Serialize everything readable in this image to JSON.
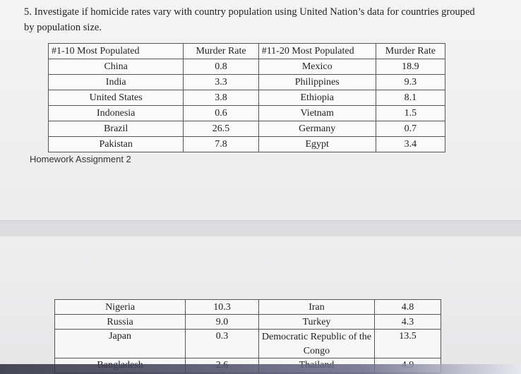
{
  "question": "5. Investigate if homicide rates vary with country population using United Nation’s data for countries grouped by population size.",
  "section_label": "Homework Assignment 2",
  "table1": {
    "headers": [
      "#1-10 Most Populated",
      "Murder Rate",
      "#11-20 Most Populated",
      "Murder Rate"
    ],
    "rows": [
      [
        "China",
        "0.8",
        "Mexico",
        "18.9"
      ],
      [
        "India",
        "3.3",
        "Philippines",
        "9.3"
      ],
      [
        "United States",
        "3.8",
        "Ethiopia",
        "8.1"
      ],
      [
        "Indonesia",
        "0.6",
        "Vietnam",
        "1.5"
      ],
      [
        "Brazil",
        "26.5",
        "Germany",
        "0.7"
      ],
      [
        "Pakistan",
        "7.8",
        "Egypt",
        "3.4"
      ]
    ]
  },
  "table2": {
    "rows": [
      [
        "Nigeria",
        "10.3",
        "Iran",
        "4.8"
      ],
      [
        "Russia",
        "9.0",
        "Turkey",
        "4.3"
      ],
      [
        "Japan",
        "0.3",
        "Democratic Republic of the",
        "13.5"
      ],
      [
        "",
        "",
        "Congo",
        ""
      ],
      [
        "Bangladesh",
        "2.6",
        "Thailand",
        "4.9"
      ]
    ]
  }
}
